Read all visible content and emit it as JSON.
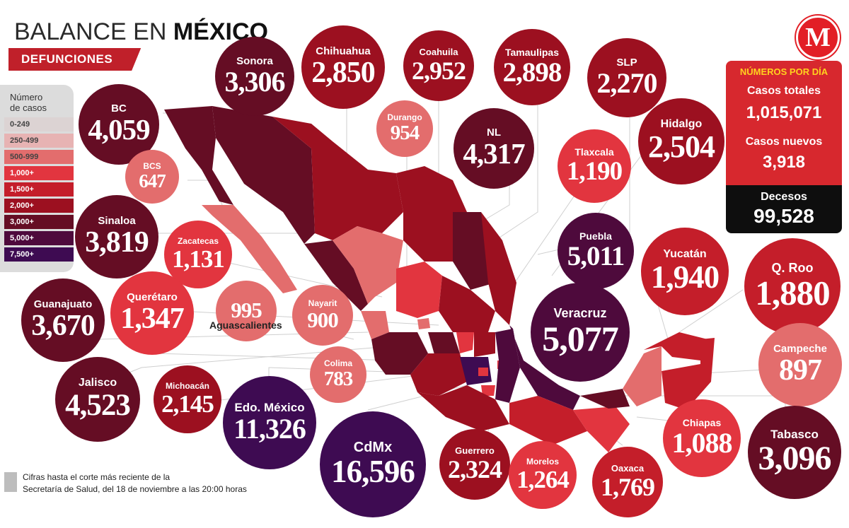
{
  "header": {
    "title_light": "BALANCE EN ",
    "title_bold": "MÉXICO",
    "subtitle": "DEFUNCIONES"
  },
  "logo": {
    "letter": "M",
    "color": "#e21f26"
  },
  "legend": {
    "title_line1": "Número",
    "title_line2": "de casos",
    "items": [
      {
        "label": "0-249",
        "color": "#dcd3d3"
      },
      {
        "label": "250-499",
        "color": "#e7b3b3"
      },
      {
        "label": "500-999",
        "color": "#e36d6d"
      },
      {
        "label": "1,000+",
        "color": "#e2353f"
      },
      {
        "label": "1,500+",
        "color": "#c41e2a"
      },
      {
        "label": "2,000+",
        "color": "#9c1020"
      },
      {
        "label": "3,000+",
        "color": "#650d24"
      },
      {
        "label": "5,000+",
        "color": "#4e0a3c"
      },
      {
        "label": "7,500+",
        "color": "#3e0b52"
      }
    ]
  },
  "states": [
    {
      "name": "BC",
      "value": "4,059",
      "color": "#650d24"
    },
    {
      "name": "Sonora",
      "value": "3,306",
      "color": "#650d24"
    },
    {
      "name": "Chihuahua",
      "value": "2,850",
      "color": "#9c1020"
    },
    {
      "name": "Coahuila",
      "value": "2,952",
      "color": "#9c1020"
    },
    {
      "name": "Tamaulipas",
      "value": "2,898",
      "color": "#9c1020"
    },
    {
      "name": "SLP",
      "value": "2,270",
      "color": "#9c1020"
    },
    {
      "name": "Durango",
      "value": "954",
      "color": "#e36d6d"
    },
    {
      "name": "NL",
      "value": "4,317",
      "color": "#650d24"
    },
    {
      "name": "Hidalgo",
      "value": "2,504",
      "color": "#9c1020"
    },
    {
      "name": "BCS",
      "value": "647",
      "color": "#e36d6d"
    },
    {
      "name": "Tlaxcala",
      "value": "1,190",
      "color": "#e2353f"
    },
    {
      "name": "Sinaloa",
      "value": "3,819",
      "color": "#650d24"
    },
    {
      "name": "Zacatecas",
      "value": "1,131",
      "color": "#e2353f"
    },
    {
      "name": "Puebla",
      "value": "5,011",
      "color": "#4e0a3c"
    },
    {
      "name": "Yucatán",
      "value": "1,940",
      "color": "#c41e2a"
    },
    {
      "name": "Q. Roo",
      "value": "1,880",
      "color": "#c41e2a"
    },
    {
      "name": "Querétaro",
      "value": "1,347",
      "color": "#e2353f"
    },
    {
      "name": "Nayarit",
      "value": "900",
      "color": "#e36d6d"
    },
    {
      "name": "Guanajuato",
      "value": "3,670",
      "color": "#650d24"
    },
    {
      "name": "Veracruz",
      "value": "5,077",
      "color": "#4e0a3c"
    },
    {
      "name": "Campeche",
      "value": "897",
      "color": "#e36d6d"
    },
    {
      "name": "Colima",
      "value": "783",
      "color": "#e36d6d"
    },
    {
      "name": "Jalisco",
      "value": "4,523",
      "color": "#650d24"
    },
    {
      "name": "Michoacán",
      "value": "2,145",
      "color": "#9c1020"
    },
    {
      "name": "Edo. México",
      "value": "11,326",
      "color": "#3e0b52"
    },
    {
      "name": "CdMx",
      "value": "16,596",
      "color": "#3e0b52"
    },
    {
      "name": "Guerrero",
      "value": "2,324",
      "color": "#9c1020"
    },
    {
      "name": "Morelos",
      "value": "1,264",
      "color": "#e2353f"
    },
    {
      "name": "Oaxaca",
      "value": "1,769",
      "color": "#c41e2a"
    },
    {
      "name": "Chiapas",
      "value": "1,088",
      "color": "#e2353f"
    },
    {
      "name": "Tabasco",
      "value": "3,096",
      "color": "#650d24"
    }
  ],
  "aguascalientes": {
    "name": "Aguascalientes",
    "value": "995",
    "color": "#e36d6d"
  },
  "panel": {
    "heading": "NÚMEROS POR DÍA",
    "total_label": "Casos totales",
    "total_value": "1,015,071",
    "new_label": "Casos nuevos",
    "new_value": "3,918",
    "deaths_label": "Decesos",
    "deaths_value": "99,528"
  },
  "footnote": {
    "line1": "Cifras hasta el corte más reciente de la",
    "line2": "Secretaría de Salud, del 18 de noviembre a las 20:00 horas"
  }
}
